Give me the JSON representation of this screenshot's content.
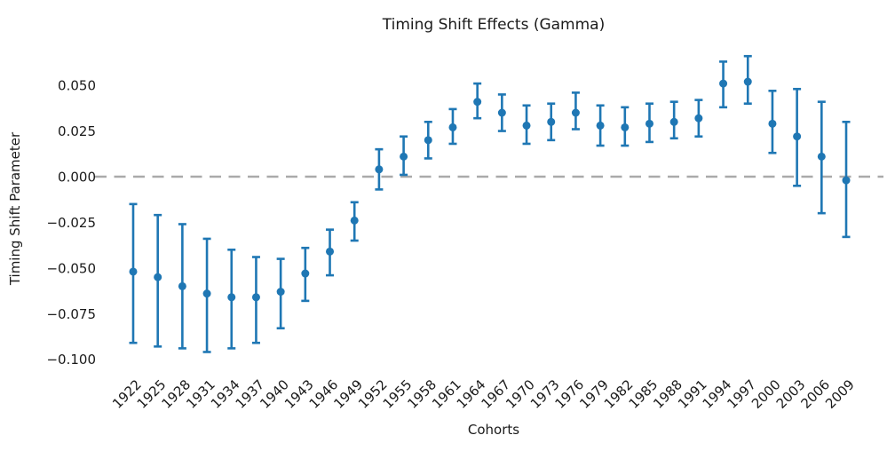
{
  "chart_data": {
    "type": "scatter",
    "variant": "errorbar",
    "title": "Timing Shift Effects (Gamma)",
    "xlabel": "Cohorts",
    "ylabel": "Timing Shift Parameter",
    "categories": [
      "1922",
      "1925",
      "1928",
      "1931",
      "1934",
      "1937",
      "1940",
      "1943",
      "1946",
      "1949",
      "1952",
      "1955",
      "1958",
      "1961",
      "1964",
      "1967",
      "1970",
      "1973",
      "1976",
      "1979",
      "1982",
      "1985",
      "1988",
      "1991",
      "1994",
      "1997",
      "2000",
      "2003",
      "2006",
      "2009"
    ],
    "series": [
      {
        "name": "Timing Shift Parameter",
        "values": [
          -0.052,
          -0.055,
          -0.06,
          -0.064,
          -0.066,
          -0.066,
          -0.063,
          -0.053,
          -0.041,
          -0.024,
          0.004,
          0.011,
          0.02,
          0.027,
          0.041,
          0.035,
          0.028,
          0.03,
          0.035,
          0.028,
          0.027,
          0.029,
          0.03,
          0.032,
          0.051,
          0.052,
          0.029,
          0.022,
          0.011,
          -0.002
        ],
        "ci_low": [
          -0.091,
          -0.093,
          -0.094,
          -0.096,
          -0.094,
          -0.091,
          -0.083,
          -0.068,
          -0.054,
          -0.035,
          -0.007,
          0.001,
          0.01,
          0.018,
          0.032,
          0.025,
          0.018,
          0.02,
          0.026,
          0.017,
          0.017,
          0.019,
          0.021,
          0.022,
          0.038,
          0.04,
          0.013,
          -0.005,
          -0.02,
          -0.033
        ],
        "ci_high": [
          -0.015,
          -0.021,
          -0.026,
          -0.034,
          -0.04,
          -0.044,
          -0.045,
          -0.039,
          -0.029,
          -0.014,
          0.015,
          0.022,
          0.03,
          0.037,
          0.051,
          0.045,
          0.039,
          0.04,
          0.046,
          0.039,
          0.038,
          0.04,
          0.041,
          0.042,
          0.063,
          0.066,
          0.047,
          0.048,
          0.041,
          0.03
        ]
      }
    ],
    "yticks": {
      "values": [
        0.05,
        0.025,
        0.0,
        -0.025,
        -0.05,
        -0.075,
        -0.1
      ],
      "labels": [
        "0.050",
        "0.025",
        "0.000",
        "−0.025",
        "−0.050",
        "−0.075",
        "−0.100"
      ]
    },
    "ylim": [
      -0.105,
      0.07
    ],
    "grid": false,
    "legend": false,
    "zero_line": {
      "value": 0.0,
      "style": "dashed"
    },
    "colors": {
      "marker": "#1f77b4",
      "zero_line": "#aaaaaa",
      "text": "#1a1a1a",
      "background": "#ffffff"
    }
  }
}
